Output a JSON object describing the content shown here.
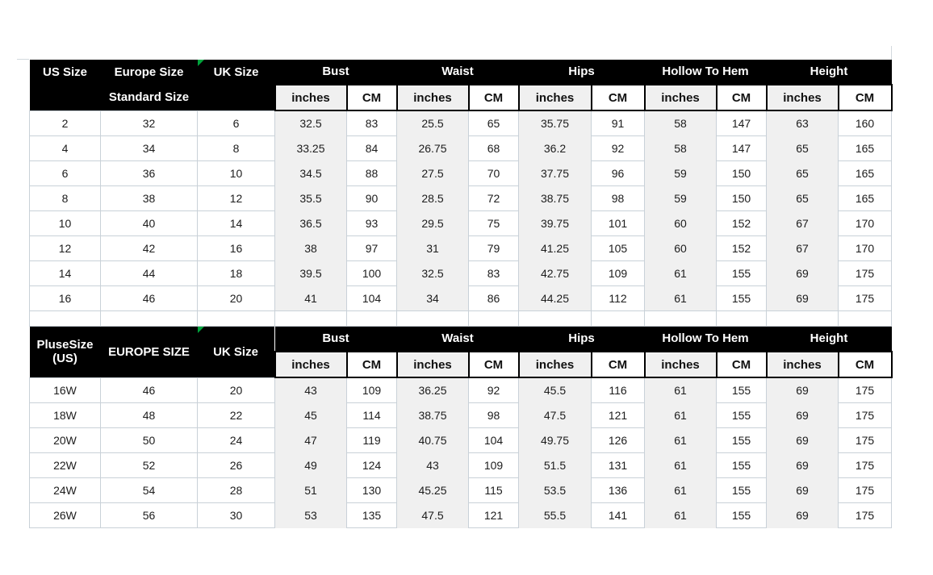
{
  "colors": {
    "header_bg": "#000000",
    "header_text": "#ffffff",
    "inches_fill": "#f0f0f0",
    "grid_border": "#c9d1d8",
    "black_border": "#000000",
    "data_text": "#1c1c1c",
    "flag_green": "#00a33d"
  },
  "icons": {
    "cell_flag": "error-triangle-icon"
  },
  "measure_groups": [
    "Bust",
    "Waist",
    "Hips",
    "Hollow To Hem",
    "Height"
  ],
  "units": {
    "inches_label": "inches",
    "cm_label": "CM"
  },
  "standard_table": {
    "size_headers": [
      "US Size",
      "Europe Size",
      "UK Size"
    ],
    "subtitle": "Standard Size",
    "rows": [
      [
        "2",
        "32",
        "6",
        "32.5",
        "83",
        "25.5",
        "65",
        "35.75",
        "91",
        "58",
        "147",
        "63",
        "160"
      ],
      [
        "4",
        "34",
        "8",
        "33.25",
        "84",
        "26.75",
        "68",
        "36.2",
        "92",
        "58",
        "147",
        "65",
        "165"
      ],
      [
        "6",
        "36",
        "10",
        "34.5",
        "88",
        "27.5",
        "70",
        "37.75",
        "96",
        "59",
        "150",
        "65",
        "165"
      ],
      [
        "8",
        "38",
        "12",
        "35.5",
        "90",
        "28.5",
        "72",
        "38.75",
        "98",
        "59",
        "150",
        "65",
        "165"
      ],
      [
        "10",
        "40",
        "14",
        "36.5",
        "93",
        "29.5",
        "75",
        "39.75",
        "101",
        "60",
        "152",
        "67",
        "170"
      ],
      [
        "12",
        "42",
        "16",
        "38",
        "97",
        "31",
        "79",
        "41.25",
        "105",
        "60",
        "152",
        "67",
        "170"
      ],
      [
        "14",
        "44",
        "18",
        "39.5",
        "100",
        "32.5",
        "83",
        "42.75",
        "109",
        "61",
        "155",
        "69",
        "175"
      ],
      [
        "16",
        "46",
        "20",
        "41",
        "104",
        "34",
        "86",
        "44.25",
        "112",
        "61",
        "155",
        "69",
        "175"
      ]
    ]
  },
  "plus_table": {
    "size_headers": [
      "PluseSize (US)",
      "EUROPE SIZE",
      "UK Size"
    ],
    "rows": [
      [
        "16W",
        "46",
        "20",
        "43",
        "109",
        "36.25",
        "92",
        "45.5",
        "116",
        "61",
        "155",
        "69",
        "175"
      ],
      [
        "18W",
        "48",
        "22",
        "45",
        "114",
        "38.75",
        "98",
        "47.5",
        "121",
        "61",
        "155",
        "69",
        "175"
      ],
      [
        "20W",
        "50",
        "24",
        "47",
        "119",
        "40.75",
        "104",
        "49.75",
        "126",
        "61",
        "155",
        "69",
        "175"
      ],
      [
        "22W",
        "52",
        "26",
        "49",
        "124",
        "43",
        "109",
        "51.5",
        "131",
        "61",
        "155",
        "69",
        "175"
      ],
      [
        "24W",
        "54",
        "28",
        "51",
        "130",
        "45.25",
        "115",
        "53.5",
        "136",
        "61",
        "155",
        "69",
        "175"
      ],
      [
        "26W",
        "56",
        "30",
        "53",
        "135",
        "47.5",
        "121",
        "55.5",
        "141",
        "61",
        "155",
        "69",
        "175"
      ]
    ]
  }
}
